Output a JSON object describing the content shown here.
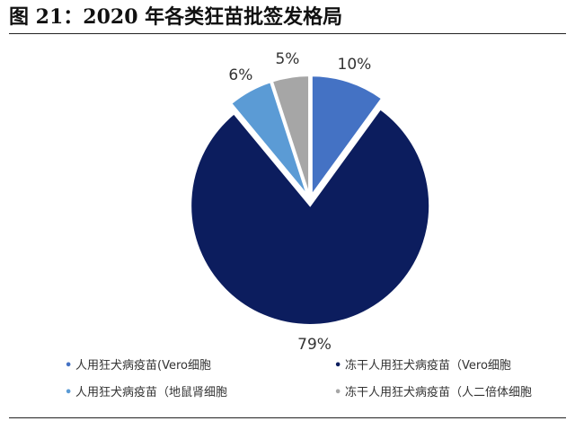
{
  "title": "图  21：2020 年各类狂苗批签发格局",
  "chart_data": {
    "type": "pie",
    "title": "图  21：2020 年各类狂苗批签发格局",
    "start_angle_deg": 0,
    "direction": "clockwise",
    "slices": [
      {
        "name": "人用狂犬病疫苗(Vero细胞",
        "value": 10,
        "label": "10%",
        "color": "#4472C4"
      },
      {
        "name": "冻干人用狂犬病疫苗（Vero细胞",
        "value": 79,
        "label": "79%",
        "color": "#0C1D5E"
      },
      {
        "name": "人用狂犬病疫苗（地鼠肾细胞",
        "value": 6,
        "label": "6%",
        "color": "#5B9BD5"
      },
      {
        "name": "冻干人用狂犬病疫苗（人二倍体细胞",
        "value": 5,
        "label": "5%",
        "color": "#A6A6A6"
      }
    ],
    "legend": {
      "position": "bottom",
      "items": [
        {
          "bullet": "•",
          "text": "人用狂犬病疫苗(Vero细胞",
          "color": "#4472C4"
        },
        {
          "bullet": "•",
          "text": "冻干人用狂犬病疫苗（Vero细胞",
          "color": "#0C1D5E"
        },
        {
          "bullet": "•",
          "text": "人用狂犬病疫苗（地鼠肾细胞",
          "color": "#5B9BD5"
        },
        {
          "bullet": "•",
          "text": "冻干人用狂犬病疫苗（人二倍体细胞",
          "color": "#A6A6A6"
        }
      ]
    }
  }
}
